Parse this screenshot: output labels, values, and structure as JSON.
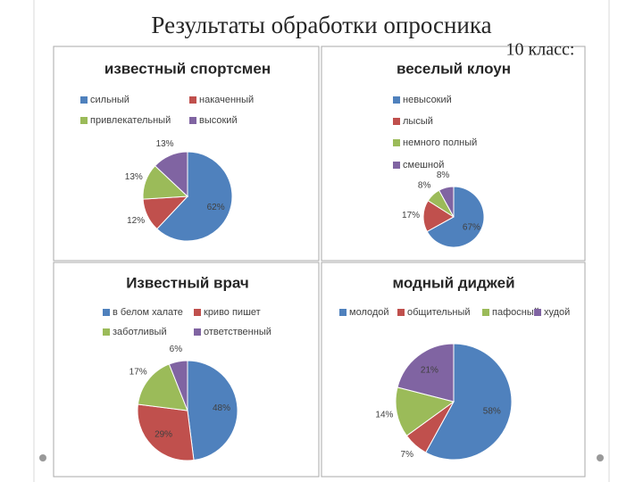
{
  "slide": {
    "title": "Результаты обработки опросника",
    "subtitle": "10 класс:"
  },
  "chart_data": [
    {
      "type": "pie",
      "title": "известный спортсмен",
      "categories": [
        "сильный",
        "накаченный",
        "привлекательный",
        "высокий"
      ],
      "values": [
        62,
        12,
        13,
        13
      ],
      "value_labels": [
        "62%",
        "12%",
        "13%",
        "13%"
      ],
      "colors": [
        "#4f81bd",
        "#c0504d",
        "#9bbb59",
        "#8064a2"
      ]
    },
    {
      "type": "pie",
      "title": "веселый клоун",
      "categories": [
        "невысокий",
        "лысый",
        "немного полный",
        "смешной"
      ],
      "values": [
        67,
        17,
        8,
        8
      ],
      "value_labels": [
        "67%",
        "17%",
        "8%",
        "8%"
      ],
      "colors": [
        "#4f81bd",
        "#c0504d",
        "#9bbb59",
        "#8064a2"
      ]
    },
    {
      "type": "pie",
      "title": "Известный врач",
      "categories": [
        "в белом халате",
        "криво пишет",
        "заботливый",
        "ответственный"
      ],
      "values": [
        48,
        29,
        17,
        6
      ],
      "value_labels": [
        "48%",
        "29%",
        "17%",
        "6%"
      ],
      "colors": [
        "#4f81bd",
        "#c0504d",
        "#9bbb59",
        "#8064a2"
      ]
    },
    {
      "type": "pie",
      "title": "модный диджей",
      "categories": [
        "молодой",
        "общительный",
        "пафосный",
        "худой"
      ],
      "values": [
        58,
        7,
        14,
        21
      ],
      "value_labels": [
        "58%",
        "7%",
        "14%",
        "21%"
      ],
      "colors": [
        "#4f81bd",
        "#c0504d",
        "#9bbb59",
        "#8064a2"
      ]
    }
  ]
}
